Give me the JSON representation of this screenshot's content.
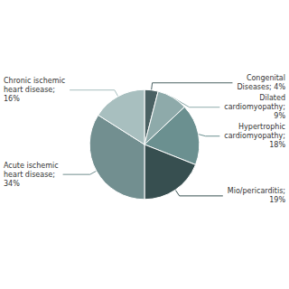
{
  "chart_data": {
    "type": "pie",
    "categories": [
      "Congenital\nDiseases; 4%",
      "Dilated\ncardiomyopathy;\n9%",
      "Hypertrophic\ncardiomyopathy;\n18%",
      "Mio/pericarditis;\n19%",
      "Acute ischemic\nheart disease;\n34%",
      "Chronic ischemic\nheart disease;\n16%"
    ],
    "values": [
      4,
      9,
      18,
      19,
      34,
      16
    ],
    "colors": [
      "#4a6163",
      "#8eaaaa",
      "#6b9090",
      "#374f50",
      "#728f90",
      "#a8bfbf"
    ]
  }
}
